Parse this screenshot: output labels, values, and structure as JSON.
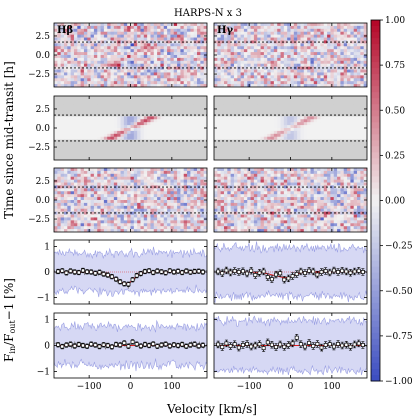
{
  "chart_data": {
    "type": "heatmap",
    "title": "HARPS-N x 3",
    "columns": [
      "Hβ",
      "Hγ"
    ],
    "xlabel": "Velocity [km/s]",
    "xlim": [
      -185,
      185
    ],
    "x_ticks": [
      -100,
      0,
      100
    ],
    "x_tick_labels": [
      "−100",
      "0",
      "100"
    ],
    "map_rows": {
      "ylabel": "Time since mid-transit [h]",
      "ylim": [
        -4.2,
        4.2
      ],
      "y_ticks": [
        2.5,
        0.0,
        -2.5
      ],
      "y_tick_labels": [
        "2.5",
        "0.0",
        "−2.5"
      ],
      "transit_lines_h": [
        1.7,
        -1.7
      ],
      "panels": [
        "observed residuals",
        "model",
        "observed minus model"
      ]
    },
    "colorbar": {
      "range": [
        -1.0,
        1.0
      ],
      "ticks": [
        1.0,
        0.75,
        0.5,
        0.25,
        0.0,
        -0.25,
        -0.5,
        -0.75,
        -1.0
      ],
      "tick_labels": [
        "1.00",
        "0.75",
        "0.50",
        "0.25",
        "0.00",
        "−0.25",
        "−0.50",
        "−0.75",
        "−1.00"
      ],
      "low_color": "#3b4cc0",
      "mid_color": "#f2f2f2",
      "high_color": "#b40426"
    },
    "spectrum_rows": {
      "ylabel": "F_in/F_out−1 [%]",
      "ylim": [
        -1.25,
        1.25
      ],
      "y_ticks": [
        1,
        0,
        -1
      ],
      "y_tick_labels": [
        "1",
        "0",
        "−1"
      ],
      "velocity": [
        -175,
        -165,
        -155,
        -145,
        -135,
        -125,
        -115,
        -105,
        -95,
        -85,
        -75,
        -65,
        -55,
        -45,
        -35,
        -25,
        -15,
        -5,
        5,
        15,
        25,
        35,
        45,
        55,
        65,
        75,
        85,
        95,
        105,
        115,
        125,
        135,
        145,
        155,
        165,
        175
      ],
      "panels": [
        {
          "column": "Hβ",
          "values": [
            0.02,
            0.05,
            -0.03,
            0.04,
            0.0,
            -0.02,
            0.06,
            0.01,
            0.0,
            -0.05,
            -0.01,
            -0.08,
            -0.12,
            -0.18,
            -0.28,
            -0.38,
            -0.46,
            -0.48,
            -0.3,
            -0.14,
            -0.06,
            0.02,
            0.05,
            -0.02,
            0.04,
            0.01,
            -0.03,
            0.05,
            0.0,
            0.03,
            -0.02,
            0.04,
            -0.01,
            0.02,
            0.03,
            0.0
          ],
          "model": [
            0.0,
            0.0,
            0.0,
            0.0,
            0.0,
            0.0,
            0.0,
            0.0,
            0.0,
            -0.01,
            -0.02,
            -0.05,
            -0.1,
            -0.18,
            -0.28,
            -0.38,
            -0.44,
            -0.45,
            -0.32,
            -0.16,
            -0.06,
            -0.01,
            0.0,
            0.0,
            0.0,
            0.0,
            0.0,
            0.0,
            0.0,
            0.0,
            0.0,
            0.0,
            0.0,
            0.0,
            0.0,
            0.0
          ]
        },
        {
          "column": "Hγ",
          "values": [
            0.02,
            -0.05,
            0.06,
            -0.02,
            0.04,
            0.0,
            0.03,
            -0.06,
            0.05,
            -0.12,
            -0.03,
            0.02,
            -0.2,
            -0.28,
            -0.1,
            -0.05,
            -0.3,
            -0.25,
            -0.16,
            -0.08,
            0.02,
            -0.04,
            0.05,
            0.02,
            -0.1,
            0.0,
            0.04,
            -0.02,
            0.06,
            0.0,
            0.05,
            0.02,
            -0.03,
            0.02,
            0.05,
            0.0
          ],
          "model": [
            0.0,
            0.0,
            0.0,
            0.0,
            0.0,
            0.0,
            0.0,
            0.0,
            0.0,
            -0.01,
            -0.02,
            -0.04,
            -0.07,
            -0.11,
            -0.15,
            -0.19,
            -0.22,
            -0.22,
            -0.16,
            -0.09,
            -0.04,
            -0.01,
            0.0,
            0.0,
            0.0,
            0.0,
            0.0,
            0.0,
            0.0,
            0.0,
            0.0,
            0.0,
            0.0,
            0.0,
            0.0,
            0.0
          ]
        },
        {
          "column": "Hβ",
          "values": [
            0.03,
            -0.04,
            0.02,
            0.05,
            -0.02,
            0.04,
            0.0,
            -0.03,
            0.05,
            0.02,
            -0.04,
            0.03,
            0.0,
            -0.05,
            0.04,
            0.02,
            0.1,
            -0.03,
            0.14,
            0.05,
            -0.02,
            0.04,
            0.0,
            0.06,
            -0.03,
            0.02,
            0.05,
            -0.02,
            0.03,
            0.0,
            0.04,
            -0.03,
            0.02,
            0.05,
            -0.02,
            0.01
          ],
          "model": [
            0,
            0,
            0,
            0,
            0,
            0,
            0,
            0,
            0,
            0,
            0,
            0,
            0,
            0,
            0,
            0,
            0,
            0,
            0,
            0,
            0,
            0,
            0,
            0,
            0,
            0,
            0,
            0,
            0,
            0,
            0,
            0,
            0,
            0,
            0,
            0
          ]
        },
        {
          "column": "Hγ",
          "values": [
            0.04,
            -0.06,
            0.08,
            -0.02,
            0.05,
            -0.08,
            0.02,
            0.06,
            -0.04,
            0.0,
            0.05,
            -0.1,
            0.12,
            0.03,
            -0.06,
            0.04,
            -0.05,
            0.02,
            0.08,
            0.3,
            0.05,
            -0.04,
            0.1,
            -0.02,
            0.06,
            -0.08,
            0.02,
            0.05,
            -0.04,
            0.06,
            0.0,
            0.03,
            -0.05,
            0.04,
            0.08,
            0.02
          ],
          "model": [
            0,
            0,
            0,
            0,
            0,
            0,
            0,
            0,
            0,
            0,
            0,
            0,
            0,
            0,
            0,
            0,
            0,
            0,
            0,
            0,
            0,
            0,
            0,
            0,
            0,
            0,
            0,
            0,
            0,
            0,
            0,
            0,
            0,
            0,
            0,
            0
          ]
        }
      ]
    }
  }
}
